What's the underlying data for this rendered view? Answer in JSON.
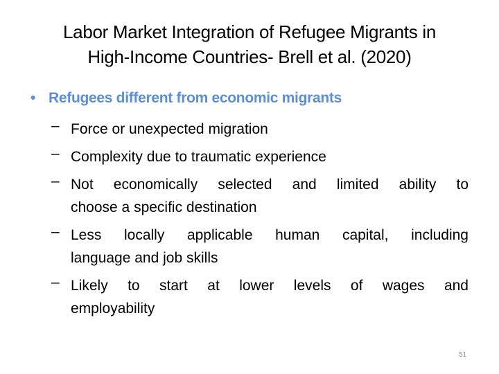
{
  "title": {
    "lines": [
      "Labor Market Integration of Refugee Migrants in",
      "High-Income Countries- Brell et al. (2020)"
    ]
  },
  "bullet": {
    "label": "Refugees different from economic migrants",
    "color": "#5b8ed8",
    "marker": "•"
  },
  "items": [
    {
      "dash": "–",
      "lines": [
        "Force or unexpected migration"
      ]
    },
    {
      "dash": "–",
      "lines": [
        "Complexity due to traumatic experience"
      ]
    },
    {
      "dash": "–",
      "lines": [
        "Not economically selected and limited ability to",
        "choose a specific destination"
      ]
    },
    {
      "dash": "–",
      "lines": [
        "Less locally applicable human capital, including",
        "language and job skills"
      ]
    },
    {
      "dash": "–",
      "lines": [
        "Likely to start at lower levels of wages and",
        "employability"
      ]
    }
  ],
  "page_number": "51"
}
